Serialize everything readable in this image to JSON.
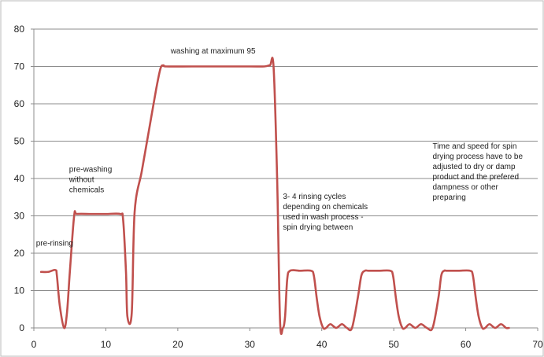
{
  "chart_data": {
    "type": "line",
    "title": "",
    "xlabel": "",
    "ylabel": "",
    "xlim": [
      0,
      70
    ],
    "ylim": [
      0,
      80
    ],
    "x_ticks": [
      "0",
      "10",
      "20",
      "30",
      "40",
      "50",
      "60",
      "70"
    ],
    "y_ticks": [
      "0",
      "10",
      "20",
      "30",
      "40",
      "50",
      "60",
      "70",
      "80"
    ],
    "grid": "horizontal",
    "legend": "none",
    "colors": {
      "line": "#c0504d",
      "grid": "#8c8c8c",
      "axis": "#8c8c8c"
    },
    "series": [
      {
        "x": [
          1.0,
          2.0,
          3.0,
          3.2,
          3.6,
          4.2,
          4.6,
          5.0,
          5.6,
          6.0,
          8.0,
          10.0,
          12.0,
          12.4,
          12.8,
          13.0,
          13.6,
          14.0,
          15.0,
          16.0,
          17.0,
          17.6,
          18.0,
          18.4,
          22.0,
          26.0,
          30.0,
          32.0,
          32.8,
          33.3,
          33.8,
          34.2,
          34.6,
          34.9,
          35.2,
          35.6,
          37.0,
          38.5,
          38.9,
          39.3,
          39.7,
          40.2,
          40.6,
          41.2,
          42.0,
          42.8,
          43.5,
          44.2,
          45.0,
          45.5,
          46.0,
          46.5,
          48.0,
          49.5,
          49.9,
          50.3,
          50.7,
          51.2,
          51.6,
          52.2,
          53.0,
          53.8,
          54.6,
          55.4,
          56.2,
          56.6,
          57.0,
          57.4,
          59.0,
          60.6,
          61.0,
          61.4,
          61.8,
          62.3,
          62.7,
          63.3,
          64.1,
          64.9,
          65.6,
          66.0
        ],
        "y": [
          15,
          15,
          15.5,
          14,
          6,
          0,
          4,
          15,
          30,
          30.5,
          30.5,
          30.5,
          30.5,
          29,
          15,
          3,
          4,
          31,
          42,
          53,
          64,
          69.5,
          70.3,
          70,
          70,
          70,
          70,
          70,
          70.3,
          70,
          40,
          2,
          0,
          3,
          13,
          15.3,
          15.3,
          15.3,
          14,
          8,
          3,
          0,
          0,
          1,
          0,
          1,
          0,
          0,
          8,
          14,
          15.3,
          15.3,
          15.3,
          15.3,
          14,
          8,
          3,
          0,
          0,
          1,
          0,
          1,
          0,
          0,
          8,
          14,
          15.3,
          15.3,
          15.3,
          15.3,
          14,
          8,
          3,
          0,
          0,
          1,
          0,
          1,
          0,
          0
        ]
      }
    ],
    "annotations": [
      {
        "lines": [
          "washing at maximum 95"
        ],
        "x": 19.0,
        "y": 73.5
      },
      {
        "lines": [
          "pre-washing",
          "without",
          "chemicals"
        ],
        "x": 4.9,
        "y": 41.8
      },
      {
        "lines": [
          "pre-rinsing"
        ],
        "x": 0.3,
        "y": 22.0
      },
      {
        "lines": [
          "3- 4 rinsing cycles",
          "depending on chemicals",
          "used in  wash process -",
          "spin  drying between"
        ],
        "x": 34.6,
        "y": 34.5
      },
      {
        "lines": [
          "Time and speed for spin",
          "drying process have to be",
          "adjusted to dry or damp",
          "product and the prefered",
          "dampness or other",
          "preparing"
        ],
        "x": 55.4,
        "y": 48.0
      }
    ]
  }
}
